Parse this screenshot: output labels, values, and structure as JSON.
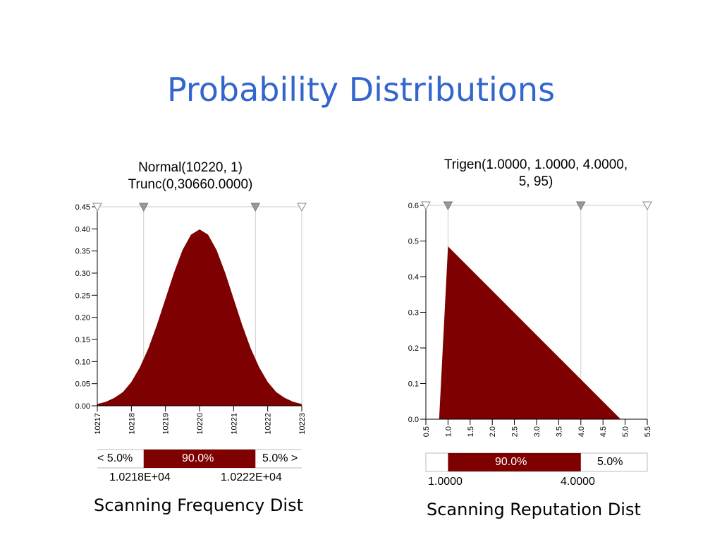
{
  "slide": {
    "title": "Probability Distributions"
  },
  "colors": {
    "fill": "#7f0000",
    "title": "#3366cc",
    "marker": "#999999",
    "grid": "#cccccc"
  },
  "chart_data": [
    {
      "type": "area",
      "title_line1": "Normal(10220, 1)",
      "title_line2": "Trunc(0,30660.0000)",
      "x": [
        10217,
        10217.25,
        10217.5,
        10217.75,
        10218,
        10218.25,
        10218.5,
        10218.75,
        10219,
        10219.25,
        10219.5,
        10219.75,
        10220,
        10220.25,
        10220.5,
        10220.75,
        10221,
        10221.25,
        10221.5,
        10221.75,
        10222,
        10222.25,
        10222.5,
        10222.75,
        10223
      ],
      "y": [
        0.004,
        0.009,
        0.018,
        0.031,
        0.054,
        0.087,
        0.13,
        0.183,
        0.242,
        0.301,
        0.352,
        0.387,
        0.399,
        0.387,
        0.352,
        0.301,
        0.242,
        0.183,
        0.13,
        0.087,
        0.054,
        0.031,
        0.018,
        0.009,
        0.004
      ],
      "xlim": [
        10217,
        10223
      ],
      "ylim": [
        0,
        0.45
      ],
      "xticks": [
        "10217",
        "10218",
        "10219",
        "10220",
        "10221",
        "10222",
        "10223"
      ],
      "yticks": [
        "0.00",
        "0.05",
        "0.10",
        "0.15",
        "0.20",
        "0.25",
        "0.30",
        "0.35",
        "0.40",
        "0.45"
      ],
      "markers": [
        10218.36,
        10221.64
      ],
      "open_markers": [
        10217,
        10223
      ],
      "band": {
        "left_label": "< 5.0%",
        "middle_label": "90.0%",
        "right_label": "5.0% >",
        "left_value": "1.0218E+04",
        "right_value": "1.0222E+04",
        "start": 10218.36,
        "end": 10221.64
      },
      "caption": "Scanning Frequency Dist"
    },
    {
      "type": "area",
      "title_line1": "Trigen(1.0000, 1.0000, 4.0000,",
      "title_line2": "5, 95)",
      "x": [
        0.8,
        1.0,
        4.9
      ],
      "y": [
        0,
        0.485,
        0
      ],
      "xlim": [
        0.5,
        5.5
      ],
      "ylim": [
        0,
        0.6
      ],
      "xticks": [
        "0.5",
        "1.0",
        "1.5",
        "2.0",
        "2.5",
        "3.0",
        "3.5",
        "4.0",
        "4.5",
        "5.0",
        "5.5"
      ],
      "yticks": [
        "0.0",
        "0.1",
        "0.2",
        "0.3",
        "0.4",
        "0.5",
        "0.6"
      ],
      "markers": [
        1.0,
        4.0
      ],
      "open_markers": [
        0.5,
        5.5
      ],
      "band": {
        "middle_label": "90.0%",
        "right_label": "5.0%",
        "left_value": "1.0000",
        "right_value": "4.0000",
        "start": 1.0,
        "end": 4.0
      },
      "caption": "Scanning Reputation Dist"
    }
  ]
}
